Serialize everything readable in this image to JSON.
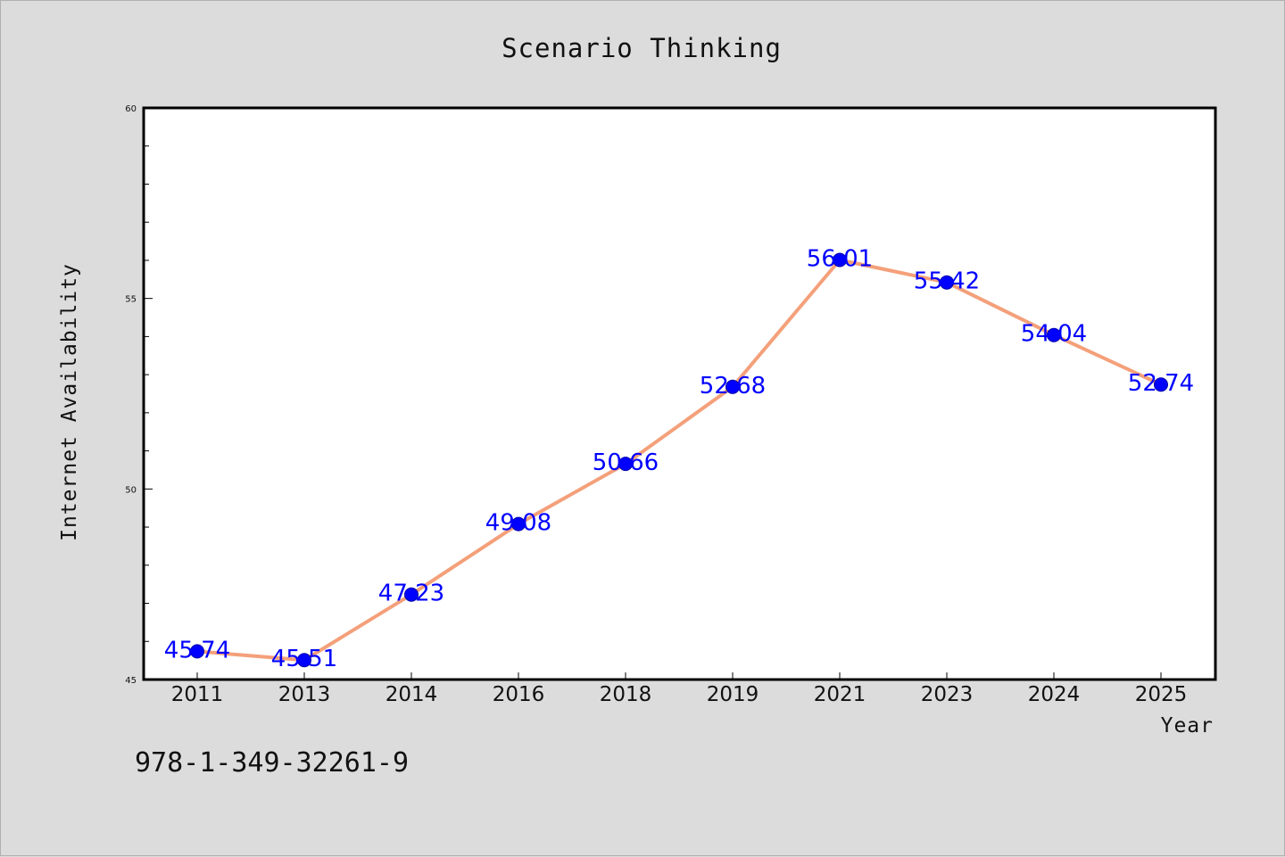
{
  "chart_data": {
    "type": "line",
    "title": "Scenario Thinking",
    "xlabel": "Year",
    "ylabel": "Internet Availability",
    "categories": [
      "2011",
      "2013",
      "2014",
      "2016",
      "2018",
      "2019",
      "2021",
      "2023",
      "2024",
      "2025"
    ],
    "series": [
      {
        "values": [
          45.74,
          45.51,
          47.23,
          49.08,
          50.66,
          52.68,
          56.01,
          55.42,
          54.04,
          52.74
        ],
        "line_color": "#f4a07a",
        "marker_color": "#0000ff"
      }
    ],
    "data_labels": [
      "45.74",
      "45.51",
      "47.23",
      "49.08",
      "50.66",
      "52.68",
      "56.01",
      "55.42",
      "54.04",
      "52.74"
    ],
    "ylim": [
      45,
      60
    ],
    "yticks": [
      "45",
      "50",
      "55",
      "60"
    ],
    "grid": false,
    "label_color": "#0000ff"
  },
  "footer": {
    "isbn": "978-1-349-32261-9"
  }
}
